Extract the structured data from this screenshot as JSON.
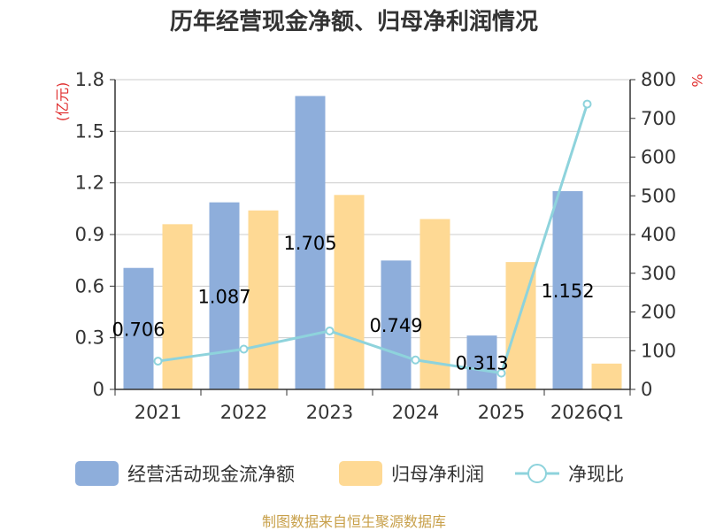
{
  "chart_data": {
    "type": "bar",
    "title": "历年经营现金净额、归母净利润情况",
    "categories": [
      "2021",
      "2022",
      "2023",
      "2024",
      "2025",
      "2026Q1"
    ],
    "series": [
      {
        "name": "经营活动现金流净额",
        "type": "bar",
        "axis": "left",
        "color": "#8eaedb",
        "values": [
          0.706,
          1.087,
          1.705,
          0.749,
          0.313,
          1.152
        ],
        "labels": [
          "0.706",
          "1.087",
          "1.705",
          "0.749",
          "0.313",
          "1.152"
        ]
      },
      {
        "name": "归母净利润",
        "type": "bar",
        "axis": "left",
        "color": "#fed994",
        "values": [
          0.96,
          1.04,
          1.13,
          0.99,
          0.74,
          0.15
        ]
      },
      {
        "name": "净现比",
        "type": "line",
        "axis": "right",
        "color": "#8ed3dc",
        "values": [
          73,
          104,
          151,
          76,
          42,
          737
        ]
      }
    ],
    "y_left": {
      "label": "(亿元)",
      "min": 0,
      "max": 1.8,
      "ticks": [
        "0",
        "0.3",
        "0.6",
        "0.9",
        "1.2",
        "1.5",
        "1.8"
      ]
    },
    "y_right": {
      "label": "%",
      "min": 0,
      "max": 800,
      "ticks": [
        "0",
        "100",
        "200",
        "300",
        "400",
        "500",
        "600",
        "700",
        "800"
      ]
    },
    "grid": true,
    "legend_position": "bottom",
    "source": "制图数据来自恒生聚源数据库",
    "colors": {
      "axis": "#333333",
      "grid": "#cccccc",
      "unit": "#e03030",
      "source": "#c8a04a"
    }
  }
}
